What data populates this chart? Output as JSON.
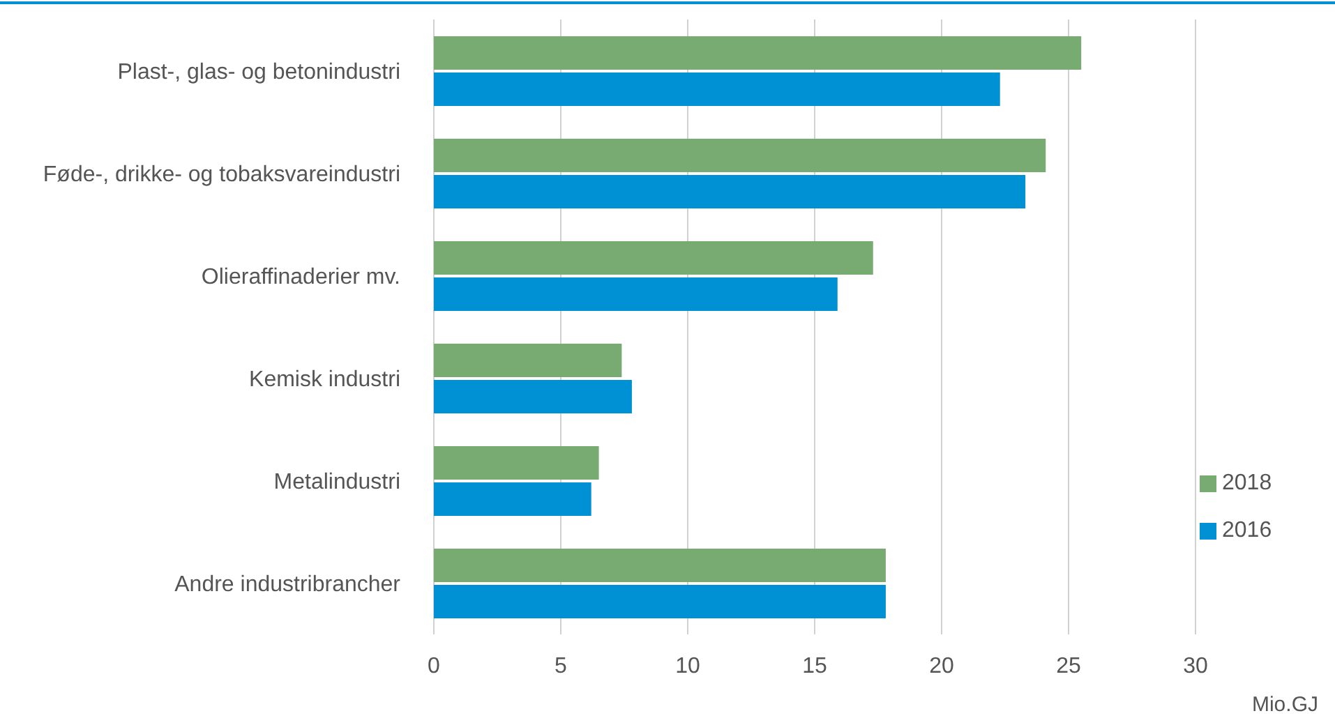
{
  "chart_data": {
    "type": "bar",
    "orientation": "horizontal",
    "xlabel": "Mio.GJ",
    "categories": [
      "Plast-, glas- og betonindustri",
      "Føde-, drikke- og tobaksvareindustri",
      "Olieraffinaderier mv.",
      "Kemisk industri",
      "Metalindustri",
      "Andre industribrancher"
    ],
    "series": [
      {
        "name": "2018",
        "color": "#77ab72",
        "values": [
          25.5,
          24.1,
          17.3,
          7.4,
          6.5,
          17.8
        ]
      },
      {
        "name": "2016",
        "color": "#0091d5",
        "values": [
          22.3,
          23.3,
          15.9,
          7.8,
          6.2,
          17.8
        ]
      }
    ],
    "xlim": [
      0,
      30
    ],
    "xticks": [
      0,
      5,
      10,
      15,
      20,
      25,
      30
    ],
    "grid": "x",
    "legend": "right"
  }
}
